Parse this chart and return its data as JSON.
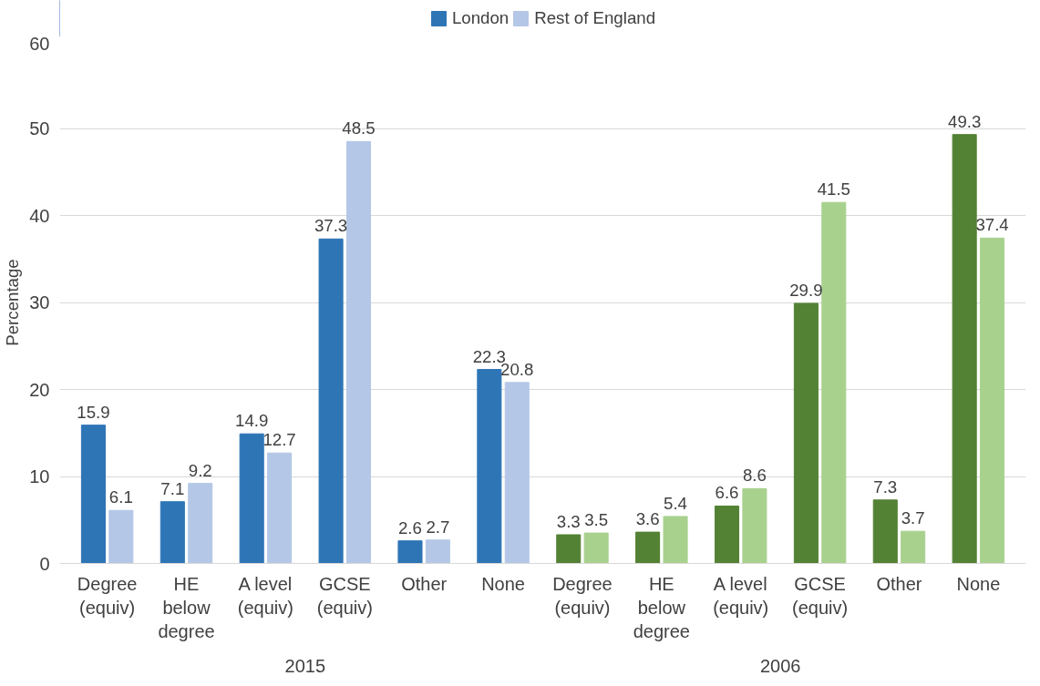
{
  "chart_data": {
    "type": "bar",
    "ylabel": "Percentage",
    "categories": [
      "Degree\n(equiv)",
      "HE\nbelow\ndegree",
      "A level\n(equiv)",
      "GCSE\n(equiv)",
      "Other",
      "None",
      "Degree\n(equiv)",
      "HE\nbelow\ndegree",
      "A level\n(equiv)",
      "GCSE\n(equiv)",
      "Other",
      "None"
    ],
    "series": [
      {
        "name": "London",
        "color": "#2e75b6",
        "colors": [
          "#2e75b6",
          "#2e75b6",
          "#2e75b6",
          "#2e75b6",
          "#2e75b6",
          "#2e75b6",
          "#548235",
          "#548235",
          "#548235",
          "#548235",
          "#548235",
          "#548235"
        ],
        "values": [
          15.9,
          7.1,
          14.9,
          37.3,
          2.6,
          22.3,
          3.3,
          3.6,
          6.6,
          29.9,
          7.3,
          49.3
        ]
      },
      {
        "name": "Rest of England",
        "color": "#b4c7e7",
        "colors": [
          "#b4c7e7",
          "#b4c7e7",
          "#b4c7e7",
          "#b4c7e7",
          "#b4c7e7",
          "#b4c7e7",
          "#a9d18e",
          "#a9d18e",
          "#a9d18e",
          "#a9d18e",
          "#a9d18e",
          "#a9d18e"
        ],
        "values": [
          6.1,
          9.2,
          12.7,
          48.5,
          2.7,
          20.8,
          3.5,
          5.4,
          8.6,
          41.5,
          3.7,
          37.4
        ]
      }
    ],
    "annotations": [
      "2015",
      "2006"
    ],
    "ylim": [
      0,
      60
    ],
    "yticks": [
      0,
      10,
      20,
      30,
      40,
      50,
      60
    ],
    "grid": "y",
    "legend": "top",
    "data_labels": true
  }
}
